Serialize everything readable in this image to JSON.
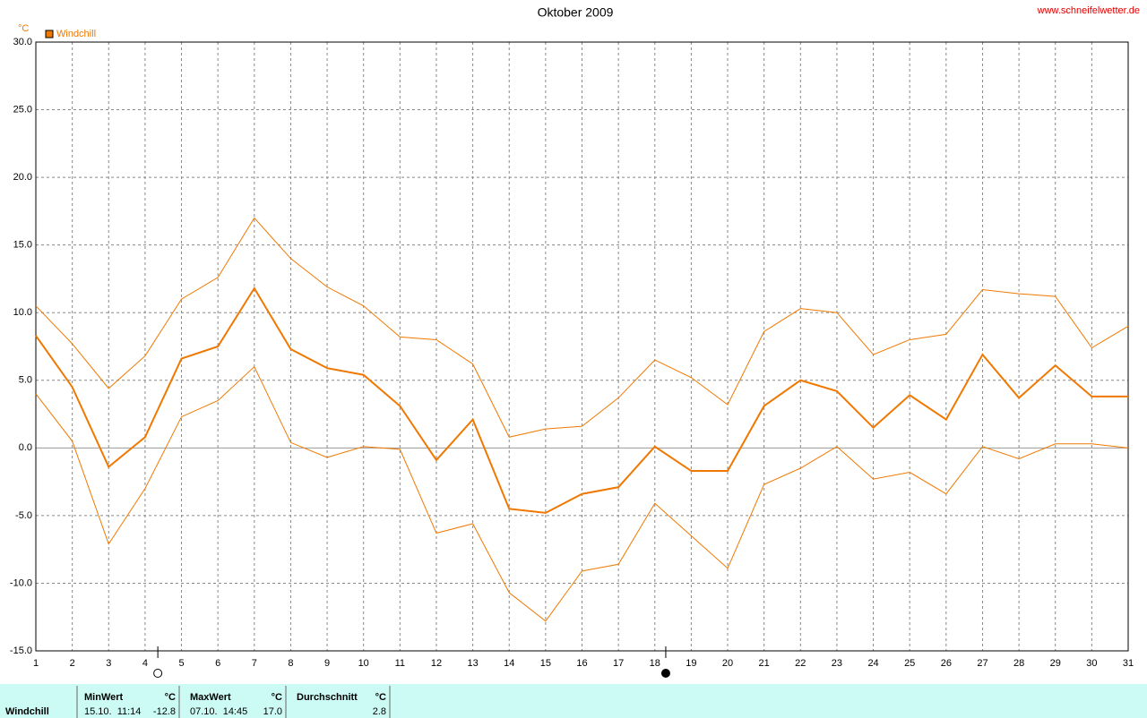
{
  "chart_data": {
    "type": "line",
    "title": "Oktober 2009",
    "source": "www.schneifelwetter.de",
    "y_unit": "°C",
    "x": [
      1,
      2,
      3,
      4,
      5,
      6,
      7,
      8,
      9,
      10,
      11,
      12,
      13,
      14,
      15,
      16,
      17,
      18,
      19,
      20,
      21,
      22,
      23,
      24,
      25,
      26,
      27,
      28,
      29,
      30,
      31
    ],
    "series": [
      {
        "name": "Windchill",
        "color": "#f07800",
        "line_width": 2,
        "values": [
          8.3,
          4.5,
          -1.4,
          0.8,
          6.6,
          7.5,
          11.8,
          7.3,
          5.9,
          5.4,
          3.1,
          -0.9,
          2.1,
          -4.5,
          -4.8,
          -3.4,
          -2.9,
          0.1,
          -1.7,
          -1.7,
          3.1,
          5.0,
          4.2,
          1.5,
          3.9,
          2.1,
          6.9,
          3.7,
          6.1,
          3.8,
          3.8
        ]
      },
      {
        "color": "#f07800",
        "line_width": 1,
        "values": [
          10.5,
          7.7,
          4.4,
          6.8,
          11.0,
          12.6,
          17.0,
          14.0,
          11.9,
          10.5,
          8.2,
          8.0,
          6.2,
          0.8,
          1.4,
          1.6,
          3.7,
          6.5,
          5.2,
          3.2,
          8.6,
          10.3,
          10.0,
          6.9,
          8.0,
          8.4,
          11.7,
          11.4,
          11.2,
          7.4,
          9.0
        ]
      },
      {
        "color": "#f07800",
        "line_width": 1,
        "values": [
          4.0,
          0.5,
          -7.1,
          -3.0,
          2.3,
          3.5,
          6.0,
          0.4,
          -0.7,
          0.1,
          -0.1,
          -6.3,
          -5.6,
          -10.7,
          -12.8,
          -9.1,
          -8.6,
          -4.1,
          -6.5,
          -8.9,
          -2.7,
          -1.5,
          0.1,
          -2.3,
          -1.8,
          -3.4,
          0.1,
          -0.8,
          0.3,
          0.3,
          0.0
        ]
      }
    ],
    "xlim": [
      1,
      31
    ],
    "xticks": [
      1,
      2,
      3,
      4,
      5,
      6,
      7,
      8,
      9,
      10,
      11,
      12,
      13,
      14,
      15,
      16,
      17,
      18,
      19,
      20,
      21,
      22,
      23,
      24,
      25,
      26,
      27,
      28,
      29,
      30,
      31
    ],
    "ylim": [
      -15,
      30
    ],
    "yticks": [
      {
        "value": -15,
        "label": "-15.0"
      },
      {
        "value": -10,
        "label": "-10.0"
      },
      {
        "value": -5,
        "label": "-5.0"
      },
      {
        "value": 0,
        "label": "0.0"
      },
      {
        "value": 5,
        "label": "5.0"
      },
      {
        "value": 10,
        "label": "10.0"
      },
      {
        "value": 15,
        "label": "15.0"
      },
      {
        "value": 20,
        "label": "20.0"
      },
      {
        "value": 25,
        "label": "25.0"
      },
      {
        "value": 30,
        "label": "30.0"
      }
    ],
    "grid": true,
    "moon_phases": [
      {
        "x": 4.35,
        "filled": false
      },
      {
        "x": 18.3,
        "filled": true
      }
    ]
  },
  "footer": {
    "label": "Windchill",
    "columns": [
      {
        "header": "MinWert",
        "unit": "°C",
        "time": "15.10.  11:14",
        "value": "-12.8"
      },
      {
        "header": "MaxWert",
        "unit": "°C",
        "time": "07.10.  14:45",
        "value": "17.0"
      },
      {
        "header": "Durchschnitt",
        "unit": "°C",
        "time": "",
        "value": "2.8"
      }
    ]
  }
}
